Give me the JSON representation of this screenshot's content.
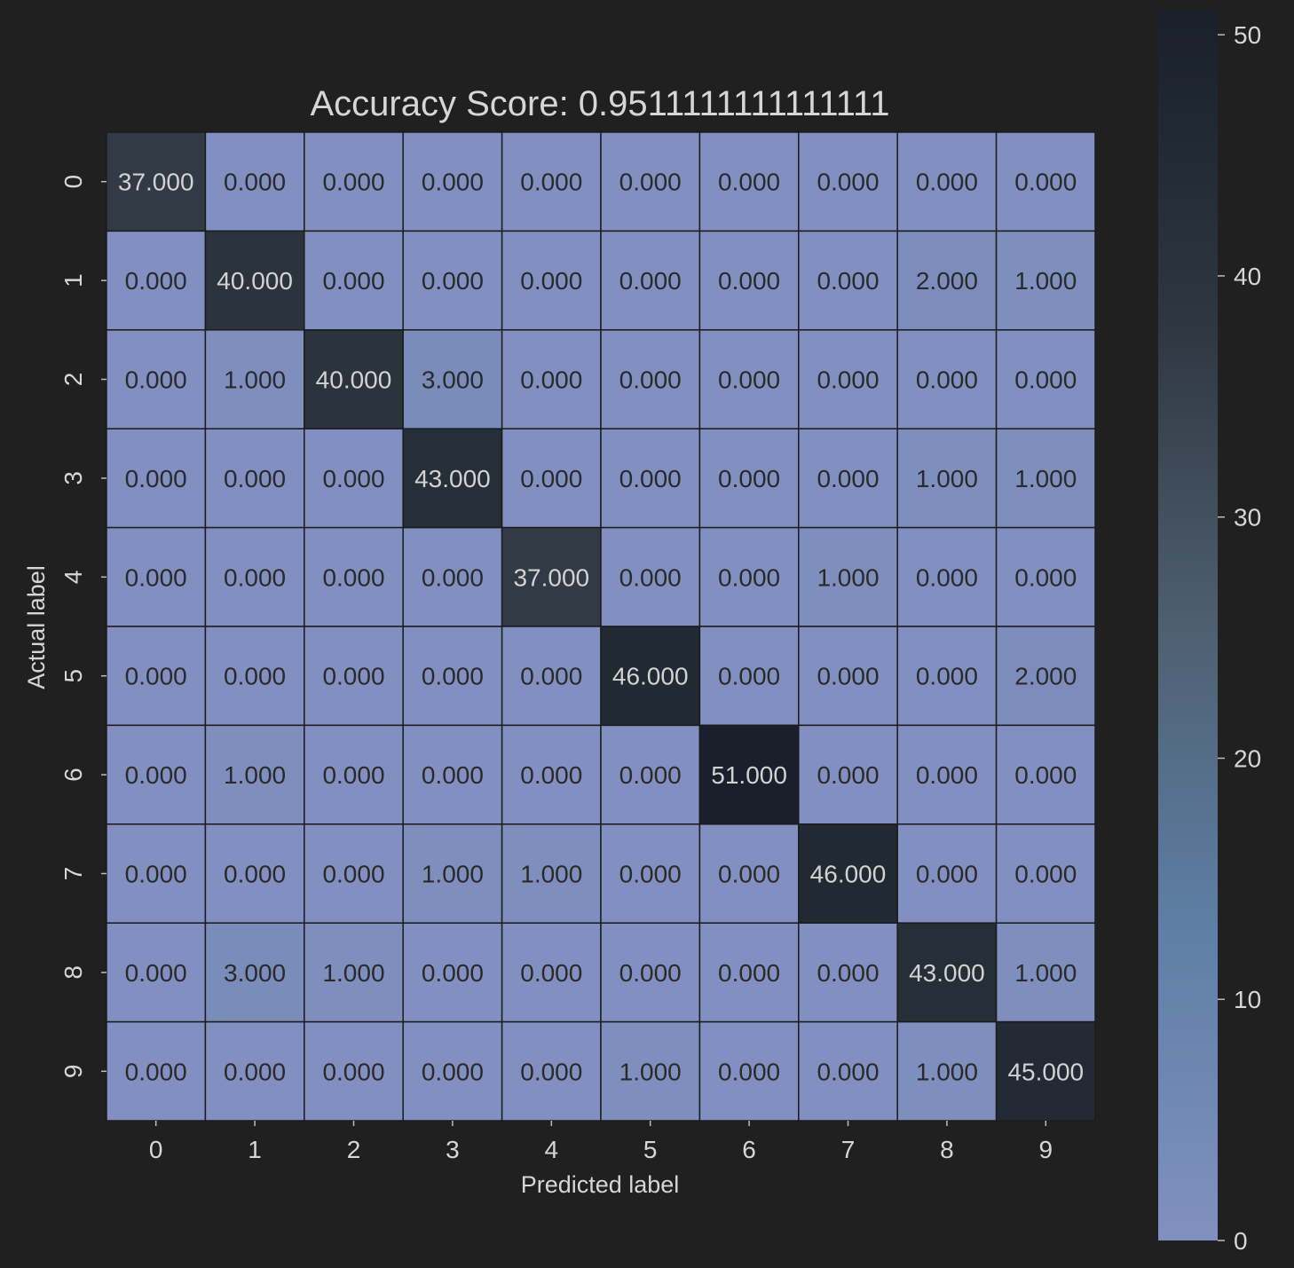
{
  "chart_data": {
    "type": "heatmap",
    "title": "Accuracy Score: 0.9511111111111111",
    "xlabel": "Predicted label",
    "ylabel": "Actual label",
    "x_categories": [
      "0",
      "1",
      "2",
      "3",
      "4",
      "5",
      "6",
      "7",
      "8",
      "9"
    ],
    "y_categories": [
      "0",
      "1",
      "2",
      "3",
      "4",
      "5",
      "6",
      "7",
      "8",
      "9"
    ],
    "values": [
      [
        37,
        0,
        0,
        0,
        0,
        0,
        0,
        0,
        0,
        0
      ],
      [
        0,
        40,
        0,
        0,
        0,
        0,
        0,
        0,
        2,
        1
      ],
      [
        0,
        1,
        40,
        3,
        0,
        0,
        0,
        0,
        0,
        0
      ],
      [
        0,
        0,
        0,
        43,
        0,
        0,
        0,
        0,
        1,
        1
      ],
      [
        0,
        0,
        0,
        0,
        37,
        0,
        0,
        1,
        0,
        0
      ],
      [
        0,
        0,
        0,
        0,
        0,
        46,
        0,
        0,
        0,
        2
      ],
      [
        0,
        1,
        0,
        0,
        0,
        0,
        51,
        0,
        0,
        0
      ],
      [
        0,
        0,
        0,
        1,
        1,
        0,
        0,
        46,
        0,
        0
      ],
      [
        0,
        3,
        1,
        0,
        0,
        0,
        0,
        0,
        43,
        1
      ],
      [
        0,
        0,
        0,
        0,
        0,
        1,
        0,
        0,
        1,
        45
      ]
    ],
    "value_format": "3 decimals",
    "colorbar": {
      "range": [
        0,
        51
      ],
      "ticks": [
        "0",
        "10",
        "20",
        "30",
        "40",
        "50"
      ],
      "colors": [
        "#8190c0",
        "#5e7fa6",
        "#4e5f70",
        "#2e3640",
        "#19202b"
      ]
    },
    "grid": false,
    "background_color": "#202020",
    "text_color": "#d6d6d6"
  }
}
